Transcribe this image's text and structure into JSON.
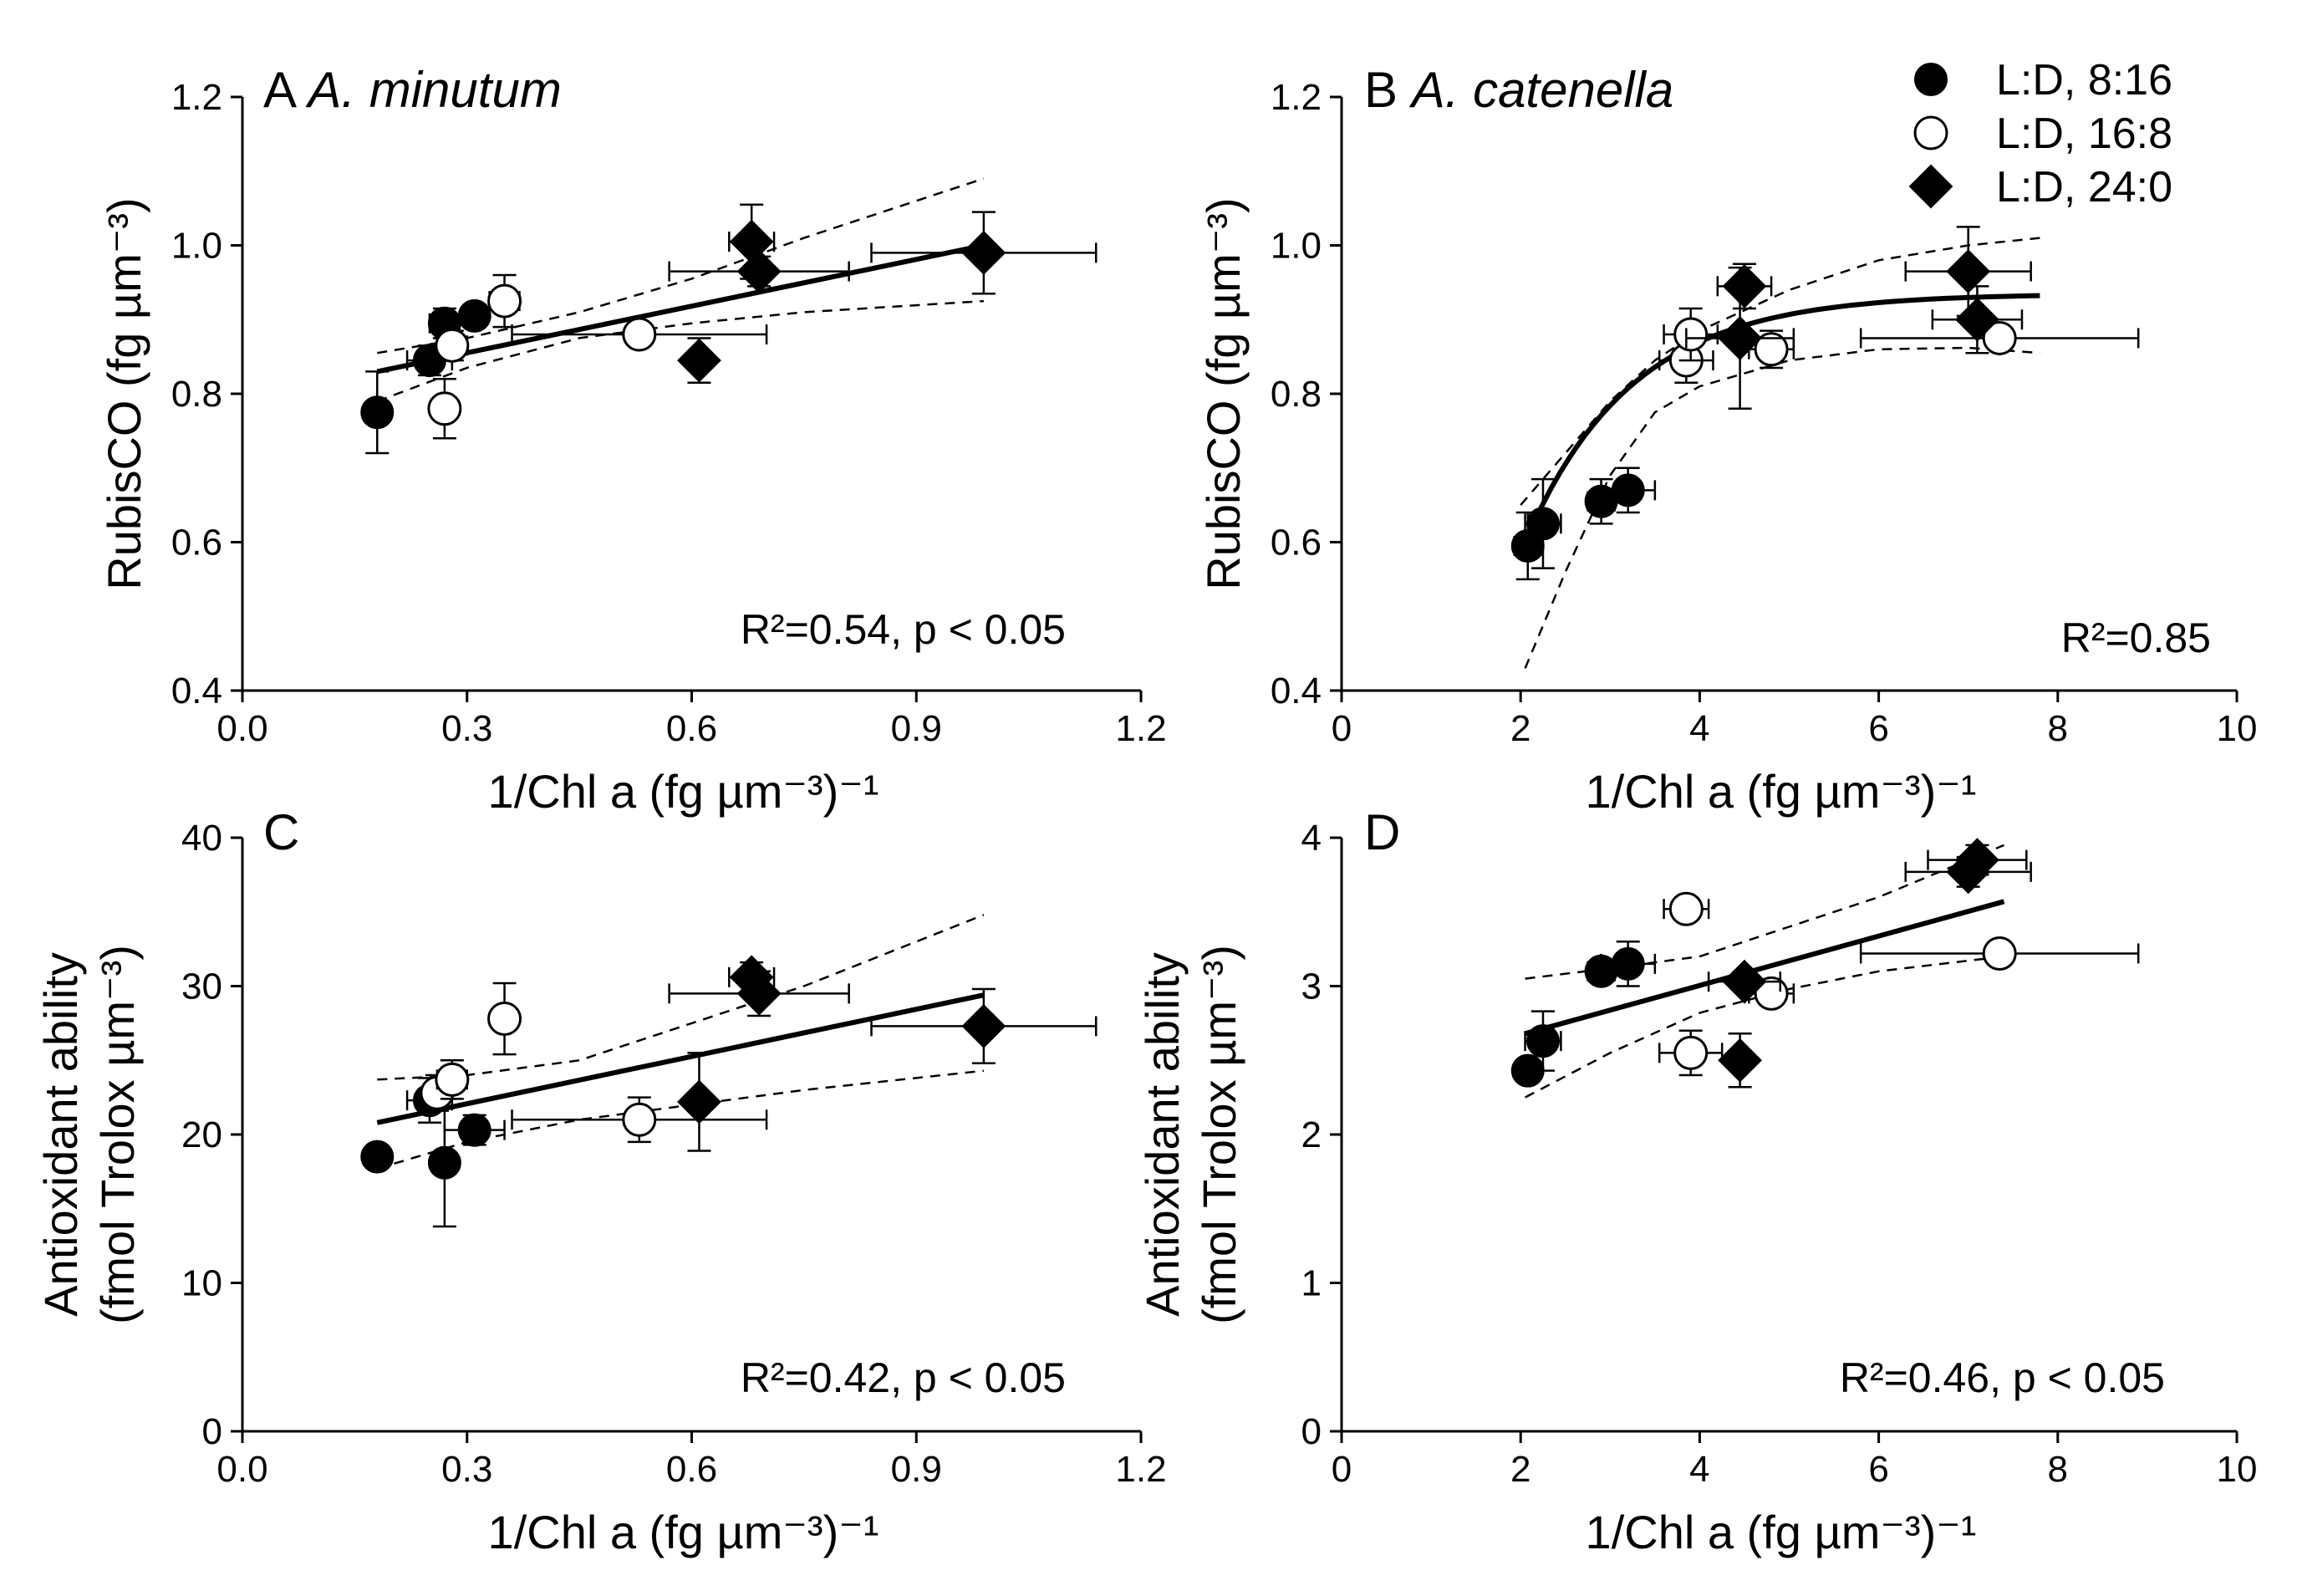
{
  "figure": {
    "legend": [
      {
        "label": "L:D, 8:16",
        "marker": "filled-circle"
      },
      {
        "label": "L:D, 16:8",
        "marker": "open-circle"
      },
      {
        "label": "L:D, 24:0",
        "marker": "filled-diamond"
      }
    ]
  },
  "chart_data": [
    {
      "id": "A",
      "type": "scatter",
      "letter": "A",
      "species": "A. minutum",
      "ylabel_lines": [
        "RubisCO (fg µm⁻³)"
      ],
      "xlabel": "1/Chl a (fg µm⁻³)⁻¹",
      "stat": "R²=0.54, p < 0.05",
      "xlim": [
        0,
        1.2
      ],
      "ylim": [
        0.4,
        1.2
      ],
      "xticks": [
        0.0,
        0.3,
        0.6,
        0.9,
        1.2
      ],
      "xtick_labels": [
        "0.0",
        "0.3",
        "0.6",
        "0.9",
        "1.2"
      ],
      "yticks": [
        0.4,
        0.6,
        0.8,
        1.0,
        1.2
      ],
      "ytick_labels": [
        "0.4",
        "0.6",
        "0.8",
        "1.0",
        "1.2"
      ],
      "fit": {
        "kind": "linear",
        "x": [
          0.18,
          0.99
        ],
        "y": [
          0.83,
          1.0
        ]
      },
      "ci_upper": [
        [
          0.18,
          0.855
        ],
        [
          0.3,
          0.875
        ],
        [
          0.45,
          0.91
        ],
        [
          0.6,
          0.955
        ],
        [
          0.75,
          1.01
        ],
        [
          0.99,
          1.09
        ]
      ],
      "ci_lower": [
        [
          0.18,
          0.79
        ],
        [
          0.3,
          0.835
        ],
        [
          0.45,
          0.875
        ],
        [
          0.6,
          0.895
        ],
        [
          0.75,
          0.91
        ],
        [
          0.99,
          0.925
        ]
      ],
      "series": [
        {
          "name": "L:D, 8:16",
          "marker": "filled-circle",
          "points": [
            {
              "x": 0.18,
              "y": 0.775,
              "xerr": 0.0,
              "yerr": 0.055
            },
            {
              "x": 0.25,
              "y": 0.845,
              "xerr": 0.03,
              "yerr": 0.02
            },
            {
              "x": 0.27,
              "y": 0.895,
              "xerr": 0.02,
              "yerr": 0.02
            },
            {
              "x": 0.31,
              "y": 0.905,
              "xerr": 0.015,
              "yerr": 0.015
            }
          ]
        },
        {
          "name": "L:D, 16:8",
          "marker": "open-circle",
          "points": [
            {
              "x": 0.27,
              "y": 0.78,
              "xerr": 0.0,
              "yerr": 0.04
            },
            {
              "x": 0.28,
              "y": 0.865,
              "xerr": 0.02,
              "yerr": 0.02
            },
            {
              "x": 0.35,
              "y": 0.925,
              "xerr": 0.02,
              "yerr": 0.035
            },
            {
              "x": 0.53,
              "y": 0.88,
              "xerr": 0.17,
              "yerr": 0.01
            }
          ]
        },
        {
          "name": "L:D, 24:0",
          "marker": "filled-diamond",
          "points": [
            {
              "x": 0.61,
              "y": 0.845,
              "xerr": 0.0,
              "yerr": 0.03
            },
            {
              "x": 0.68,
              "y": 1.005,
              "xerr": 0.03,
              "yerr": 0.05
            },
            {
              "x": 0.69,
              "y": 0.965,
              "xerr": 0.12,
              "yerr": 0.02
            },
            {
              "x": 0.99,
              "y": 0.99,
              "xerr": 0.15,
              "yerr": 0.055
            }
          ]
        }
      ]
    },
    {
      "id": "B",
      "type": "scatter",
      "letter": "B",
      "species": "A. catenella",
      "ylabel_lines": [
        "RubisCO (fg µm⁻³)"
      ],
      "xlabel": "1/Chl a (fg µm⁻³)⁻¹",
      "stat": "R²=0.85",
      "xlim": [
        0,
        10
      ],
      "ylim": [
        0.4,
        1.2
      ],
      "xticks": [
        0,
        2,
        4,
        6,
        8,
        10
      ],
      "xtick_labels": [
        "0",
        "2",
        "4",
        "6",
        "8",
        "10"
      ],
      "yticks": [
        0.4,
        0.6,
        0.8,
        1.0,
        1.2
      ],
      "ytick_labels": [
        "0.4",
        "0.6",
        "0.8",
        "1.0",
        "1.2"
      ],
      "fit": {
        "kind": "exp-rise",
        "xmin": 2.05,
        "xmax": 7.8,
        "a": 0.935,
        "b": 1.4,
        "k": 0.6,
        "x0": 2.05
      },
      "ci_upper": [
        [
          2.0,
          0.65
        ],
        [
          2.5,
          0.72
        ],
        [
          3.0,
          0.79
        ],
        [
          3.5,
          0.845
        ],
        [
          4.0,
          0.885
        ],
        [
          5.0,
          0.94
        ],
        [
          6.0,
          0.98
        ],
        [
          7.0,
          1.0
        ],
        [
          7.8,
          1.01
        ]
      ],
      "ci_lower": [
        [
          2.05,
          0.43
        ],
        [
          2.5,
          0.56
        ],
        [
          3.0,
          0.69
        ],
        [
          3.5,
          0.775
        ],
        [
          4.0,
          0.81
        ],
        [
          5.0,
          0.845
        ],
        [
          6.0,
          0.86
        ],
        [
          7.0,
          0.862
        ],
        [
          7.8,
          0.855
        ]
      ],
      "series": [
        {
          "name": "L:D, 8:16",
          "marker": "filled-circle",
          "points": [
            {
              "x": 2.08,
              "y": 0.595,
              "xerr": 0.15,
              "yerr": 0.045
            },
            {
              "x": 2.25,
              "y": 0.625,
              "xerr": 0.2,
              "yerr": 0.06
            },
            {
              "x": 2.9,
              "y": 0.655,
              "xerr": 0.15,
              "yerr": 0.03
            },
            {
              "x": 3.2,
              "y": 0.67,
              "xerr": 0.3,
              "yerr": 0.03
            }
          ]
        },
        {
          "name": "L:D, 16:8",
          "marker": "open-circle",
          "points": [
            {
              "x": 3.85,
              "y": 0.845,
              "xerr": 0.3,
              "yerr": 0.03
            },
            {
              "x": 3.9,
              "y": 0.88,
              "xerr": 0.3,
              "yerr": 0.035
            },
            {
              "x": 4.8,
              "y": 0.86,
              "xerr": 0.25,
              "yerr": 0.025
            },
            {
              "x": 7.35,
              "y": 0.875,
              "xerr": 1.55,
              "yerr": 0.015
            }
          ]
        },
        {
          "name": "L:D, 24:0",
          "marker": "filled-diamond",
          "points": [
            {
              "x": 4.45,
              "y": 0.875,
              "xerr": 0.6,
              "yerr": 0.095
            },
            {
              "x": 4.5,
              "y": 0.945,
              "xerr": 0.3,
              "yerr": 0.03
            },
            {
              "x": 7.0,
              "y": 0.965,
              "xerr": 0.7,
              "yerr": 0.06
            },
            {
              "x": 7.1,
              "y": 0.9,
              "xerr": 0.5,
              "yerr": 0.045
            }
          ]
        }
      ]
    },
    {
      "id": "C",
      "type": "scatter",
      "letter": "C",
      "species": "",
      "ylabel_lines": [
        "Antioxidant ability",
        "(fmol Trolox µm⁻³)"
      ],
      "xlabel": "1/Chl a (fg µm⁻³)⁻¹",
      "stat": "R²=0.42, p < 0.05",
      "xlim": [
        0,
        1.2
      ],
      "ylim": [
        0,
        40
      ],
      "xticks": [
        0.0,
        0.3,
        0.6,
        0.9,
        1.2
      ],
      "xtick_labels": [
        "0.0",
        "0.3",
        "0.6",
        "0.9",
        "1.2"
      ],
      "yticks": [
        0,
        10,
        20,
        30,
        40
      ],
      "ytick_labels": [
        "0",
        "10",
        "20",
        "30",
        "40"
      ],
      "fit": {
        "kind": "linear",
        "x": [
          0.18,
          0.99
        ],
        "y": [
          20.8,
          29.4
        ]
      },
      "ci_upper": [
        [
          0.18,
          23.7
        ],
        [
          0.3,
          24.0
        ],
        [
          0.45,
          25.0
        ],
        [
          0.6,
          27.5
        ],
        [
          0.75,
          30.0
        ],
        [
          0.99,
          34.8
        ]
      ],
      "ci_lower": [
        [
          0.18,
          17.7
        ],
        [
          0.3,
          19.5
        ],
        [
          0.45,
          21.0
        ],
        [
          0.6,
          22.0
        ],
        [
          0.75,
          23.0
        ],
        [
          0.99,
          24.3
        ]
      ],
      "series": [
        {
          "name": "L:D, 8:16",
          "marker": "filled-circle",
          "points": [
            {
              "x": 0.18,
              "y": 18.5,
              "xerr": 0.0,
              "yerr": 0.7
            },
            {
              "x": 0.25,
              "y": 22.3,
              "xerr": 0.03,
              "yerr": 1.5
            },
            {
              "x": 0.27,
              "y": 18.1,
              "xerr": 0.0,
              "yerr": 4.3
            },
            {
              "x": 0.31,
              "y": 20.3,
              "xerr": 0.04,
              "yerr": 1.0
            }
          ]
        },
        {
          "name": "L:D, 16:8",
          "marker": "open-circle",
          "points": [
            {
              "x": 0.26,
              "y": 22.8,
              "xerr": 0.0,
              "yerr": 1.2
            },
            {
              "x": 0.28,
              "y": 23.7,
              "xerr": 0.02,
              "yerr": 1.3
            },
            {
              "x": 0.35,
              "y": 27.8,
              "xerr": 0.0,
              "yerr": 2.4
            },
            {
              "x": 0.53,
              "y": 21.0,
              "xerr": 0.17,
              "yerr": 1.5
            }
          ]
        },
        {
          "name": "L:D, 24:0",
          "marker": "filled-diamond",
          "points": [
            {
              "x": 0.61,
              "y": 22.2,
              "xerr": 0.0,
              "yerr": 3.3
            },
            {
              "x": 0.68,
              "y": 30.6,
              "xerr": 0.03,
              "yerr": 1.0
            },
            {
              "x": 0.69,
              "y": 29.5,
              "xerr": 0.12,
              "yerr": 1.5
            },
            {
              "x": 0.99,
              "y": 27.3,
              "xerr": 0.15,
              "yerr": 2.5
            }
          ]
        }
      ]
    },
    {
      "id": "D",
      "type": "scatter",
      "letter": "D",
      "species": "",
      "ylabel_lines": [
        "Antioxidant ability",
        "(fmol Trolox µm⁻³)"
      ],
      "xlabel": "1/Chl a (fg µm⁻³)⁻¹",
      "stat": "R²=0.46, p < 0.05",
      "xlim": [
        0,
        10
      ],
      "ylim": [
        0,
        4
      ],
      "xticks": [
        0,
        2,
        4,
        6,
        8,
        10
      ],
      "xtick_labels": [
        "0",
        "2",
        "4",
        "6",
        "8",
        "10"
      ],
      "yticks": [
        0,
        1,
        2,
        3,
        4
      ],
      "ytick_labels": [
        "0",
        "1",
        "2",
        "3",
        "4"
      ],
      "fit": {
        "kind": "linear",
        "x": [
          2.05,
          7.4
        ],
        "y": [
          2.68,
          3.57
        ]
      },
      "ci_upper": [
        [
          2.05,
          3.05
        ],
        [
          3.0,
          3.12
        ],
        [
          4.0,
          3.2
        ],
        [
          5.0,
          3.4
        ],
        [
          6.0,
          3.6
        ],
        [
          7.4,
          3.95
        ]
      ],
      "ci_lower": [
        [
          2.05,
          2.25
        ],
        [
          3.0,
          2.55
        ],
        [
          4.0,
          2.82
        ],
        [
          5.0,
          2.98
        ],
        [
          6.0,
          3.1
        ],
        [
          7.4,
          3.2
        ]
      ],
      "series": [
        {
          "name": "L:D, 8:16",
          "marker": "filled-circle",
          "points": [
            {
              "x": 2.08,
              "y": 2.43,
              "xerr": 0.0,
              "yerr": 0.04
            },
            {
              "x": 2.25,
              "y": 2.63,
              "xerr": 0.2,
              "yerr": 0.2
            },
            {
              "x": 2.9,
              "y": 3.1,
              "xerr": 0.15,
              "yerr": 0.04
            },
            {
              "x": 3.2,
              "y": 3.15,
              "xerr": 0.3,
              "yerr": 0.15
            }
          ]
        },
        {
          "name": "L:D, 16:8",
          "marker": "open-circle",
          "points": [
            {
              "x": 3.85,
              "y": 3.52,
              "xerr": 0.25,
              "yerr": 0.04
            },
            {
              "x": 3.9,
              "y": 2.55,
              "xerr": 0.35,
              "yerr": 0.15
            },
            {
              "x": 4.8,
              "y": 2.95,
              "xerr": 0.25,
              "yerr": 0.04
            },
            {
              "x": 7.35,
              "y": 3.22,
              "xerr": 1.55,
              "yerr": 0.04
            }
          ]
        },
        {
          "name": "L:D, 24:0",
          "marker": "filled-diamond",
          "points": [
            {
              "x": 4.45,
              "y": 2.5,
              "xerr": 0.0,
              "yerr": 0.18
            },
            {
              "x": 4.5,
              "y": 3.03,
              "xerr": 0.4,
              "yerr": 0.04
            },
            {
              "x": 7.0,
              "y": 3.77,
              "xerr": 0.7,
              "yerr": 0.1
            },
            {
              "x": 7.1,
              "y": 3.85,
              "xerr": 0.55,
              "yerr": 0.1
            }
          ]
        }
      ]
    }
  ]
}
